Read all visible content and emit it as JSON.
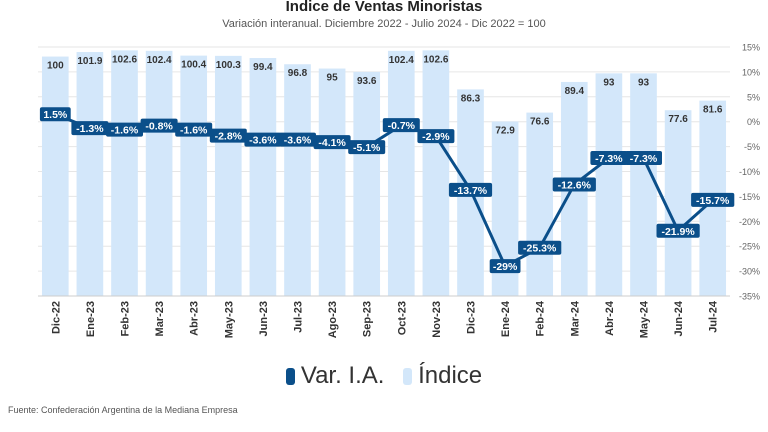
{
  "chart_data": {
    "type": "bar+line",
    "title": "Indice de Ventas Minoristas",
    "subtitle": "Variación interanual. Diciembre 2022 - Julio 2024 - Dic 2022 = 100",
    "categories": [
      "Dic-22",
      "Ene-23",
      "Feb-23",
      "Mar-23",
      "Abr-23",
      "May-23",
      "Jun-23",
      "Jul-23",
      "Ago-23",
      "Sep-23",
      "Oct-23",
      "Nov-23",
      "Dic-23",
      "Ene-24",
      "Feb-24",
      "Mar-24",
      "Abr-24",
      "May-24",
      "Jun-24",
      "Jul-24"
    ],
    "series": [
      {
        "name": "Índice",
        "type": "bar",
        "values": [
          100,
          101.9,
          102.6,
          102.4,
          100.4,
          100.3,
          99.4,
          96.8,
          95,
          93.6,
          102.4,
          102.6,
          86.3,
          72.9,
          76.6,
          89.4,
          93,
          93,
          77.6,
          81.6
        ],
        "labels": [
          "100",
          "101.9",
          "102.6",
          "102.4",
          "100.4",
          "100.3",
          "99.4",
          "96.8",
          "95",
          "93.6",
          "102.4",
          "102.6",
          "86.3",
          "72.9",
          "76.6",
          "89.4",
          "93",
          "93",
          "77.6",
          "81.6"
        ]
      },
      {
        "name": "Var. I.A.",
        "type": "line",
        "axis": "right",
        "values": [
          1.5,
          -1.3,
          -1.6,
          -0.8,
          -1.6,
          -2.8,
          -3.6,
          -3.6,
          -4.1,
          -5.1,
          -0.7,
          -2.9,
          -13.7,
          -29,
          -25.3,
          -12.6,
          -7.3,
          -7.3,
          -21.9,
          -15.7
        ],
        "labels": [
          "1.5%",
          "-1.3%",
          "-1.6%",
          "-0.8%",
          "-1.6%",
          "-2.8%",
          "-3.6%",
          "-3.6%",
          "-4.1%",
          "-5.1%",
          "-0.7%",
          "-2.9%",
          "-13.7%",
          "-29%",
          "-25.3%",
          "-12.6%",
          "-7.3%",
          "-7.3%",
          "-21.9%",
          "-15.7%"
        ]
      }
    ],
    "right_axis": {
      "ylim": [
        -35,
        15
      ],
      "ticks": [
        "15%",
        "10%",
        "5%",
        "0%",
        "-5%",
        "-10%",
        "-15%",
        "-20%",
        "-25%",
        "-30%",
        "-35%"
      ]
    },
    "left_axis_range": [
      0,
      104
    ],
    "grid": true,
    "legend": [
      {
        "label": "Var. I.A.",
        "color": "#0b4f8a"
      },
      {
        "label": "Índice",
        "color": "#d3e7fa"
      }
    ],
    "legend_position": "bottom",
    "colors": {
      "bar": "#d3e7fa",
      "line": "#0b4f8a",
      "grid": "#e6e6e6"
    }
  },
  "source": "Fuente: Confederación Argentina de la Mediana Empresa"
}
